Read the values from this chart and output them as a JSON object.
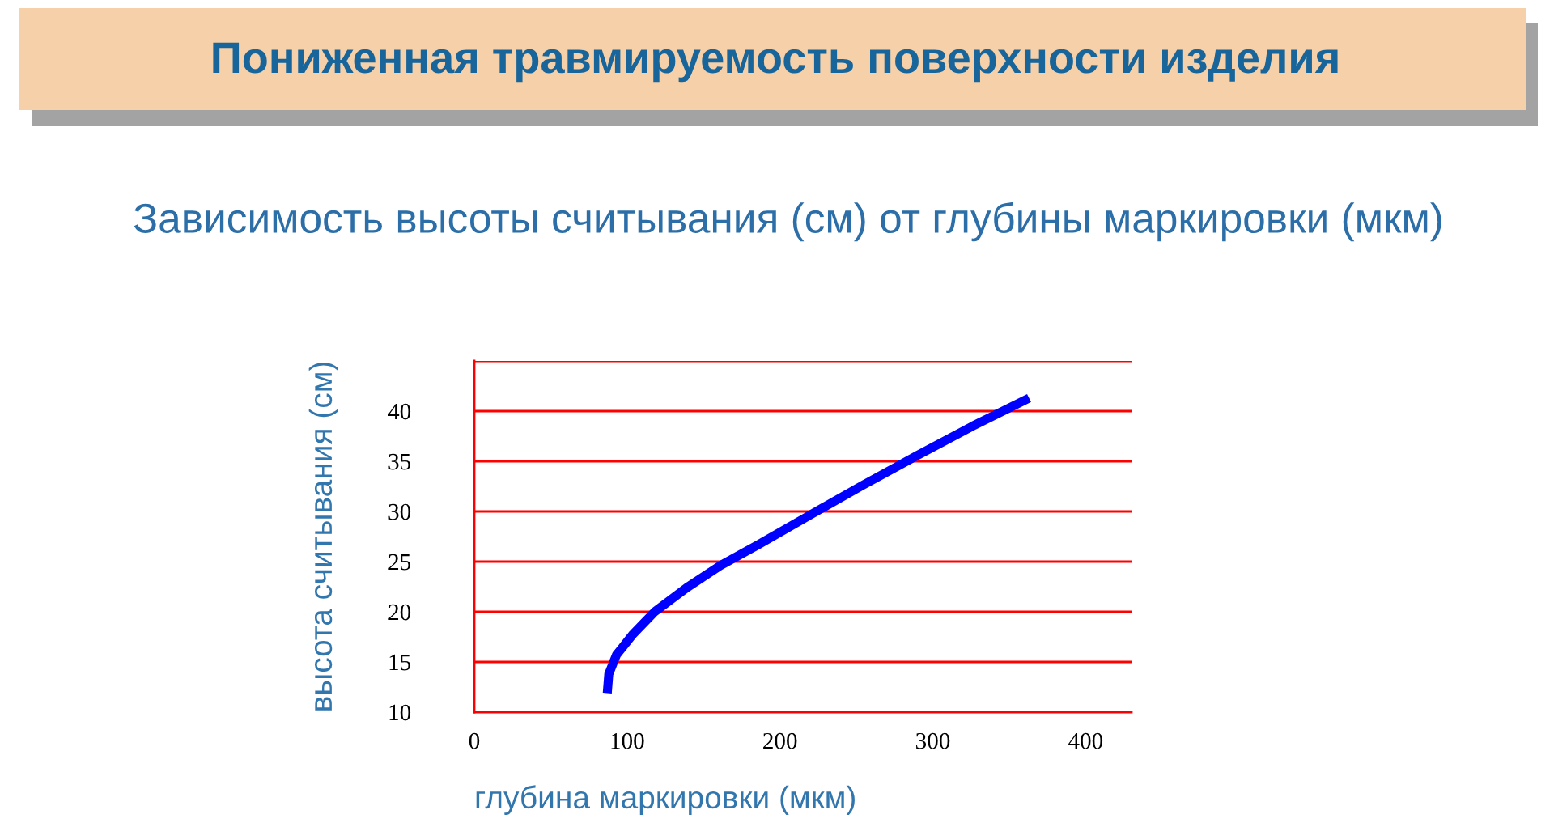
{
  "chart_data": {
    "type": "line",
    "title": "Пониженная травмируемость поверхности изделия",
    "subtitle": "Зависимость высоты считывания (см) от глубины маркировки (мкм)",
    "xlabel": "глубина маркировки (мкм)",
    "ylabel": "высота считывания (см)",
    "series": [
      {
        "color": "#0000ff",
        "x": [
          87,
          88,
          93,
          104,
          118,
          139,
          161,
          186,
          218,
          254,
          290,
          326,
          363
        ],
        "values": [
          11.9,
          13.8,
          15.7,
          17.8,
          20.0,
          22.4,
          24.6,
          26.7,
          29.5,
          32.6,
          35.6,
          38.5,
          41.3
        ]
      }
    ],
    "xlim": [
      0,
      430
    ],
    "ylim": [
      10,
      45
    ],
    "xticks": [
      0,
      100,
      200,
      300,
      400
    ],
    "yticks": [
      10,
      15,
      20,
      25,
      30,
      35,
      40,
      {
        "value": 45,
        "label": null
      }
    ],
    "grid": "y",
    "line_style": "solid"
  }
}
